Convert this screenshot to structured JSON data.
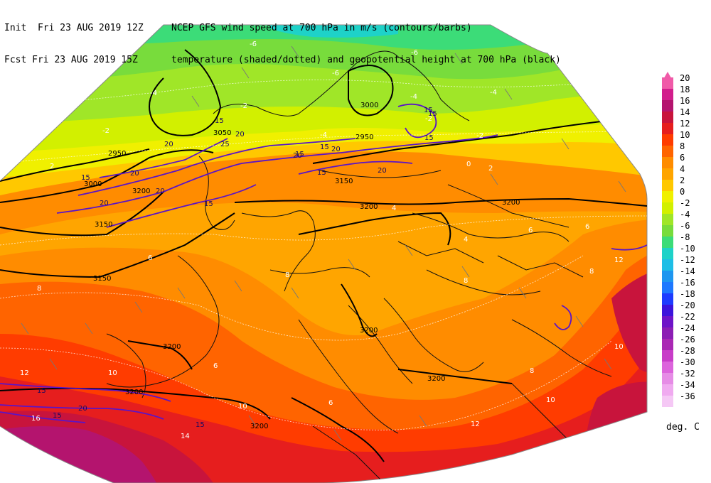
{
  "header": {
    "line1_left": "Init  Fri 23 AUG 2019 12Z",
    "line1_right": "NCEP GFS wind speed at 700 hPa in m/s (contours/barbs)",
    "line2_left": "Fcst Fri 23 AUG 2019 15Z",
    "line2_right": "temperature (shaded/dotted) and geopotential height at 700 hPa (black)"
  },
  "colorbar": {
    "levels": [
      20,
      18,
      16,
      14,
      12,
      10,
      8,
      6,
      4,
      2,
      0,
      -2,
      -4,
      -6,
      -8,
      -10,
      -12,
      -14,
      -16,
      -18,
      -20,
      -22,
      -24,
      -26,
      -28,
      -30,
      -32,
      -34,
      -36
    ],
    "colors": [
      "#f05aa8",
      "#d21e8c",
      "#b4146e",
      "#c8143c",
      "#e61e1e",
      "#ff3c00",
      "#ff6400",
      "#ff8c00",
      "#ffa500",
      "#ffc800",
      "#f0f000",
      "#d2f000",
      "#a0e628",
      "#78dc3c",
      "#3cdc78",
      "#1ed2c8",
      "#1ebee6",
      "#1e96f0",
      "#1e78ff",
      "#1e3cff",
      "#3c14dc",
      "#6e14c8",
      "#8c1eb4",
      "#aa28b4",
      "#c83cc8",
      "#dc64dc",
      "#e68ce6",
      "#f0aaf0",
      "#f5c8f5"
    ],
    "units": "deg. C"
  },
  "map": {
    "height_labels": [
      "3000",
      "2950",
      "2950",
      "3000",
      "3150",
      "3200",
      "3200",
      "3150",
      "3200",
      "3200",
      "3200",
      "3200",
      "3200",
      "3200",
      "3050",
      "3150"
    ],
    "wind_labels": [
      "15",
      "20",
      "20",
      "25",
      "20",
      "15",
      "20",
      "20",
      "15",
      "15",
      "20",
      "15",
      "15",
      "20",
      "15",
      "15",
      "15",
      "20",
      "20",
      "15",
      "15",
      "15"
    ],
    "temp_labels": [
      "-6",
      "-4",
      "-2",
      "-6",
      "-4",
      "-4",
      "-2",
      "-2",
      "-4",
      "0",
      "2",
      "2",
      "4",
      "4",
      "6",
      "6",
      "6",
      "8",
      "8",
      "8",
      "8",
      "8",
      "10",
      "10",
      "10",
      "10",
      "12",
      "12",
      "12",
      "14",
      "16",
      "6",
      "6",
      "-6",
      "-2"
    ]
  }
}
